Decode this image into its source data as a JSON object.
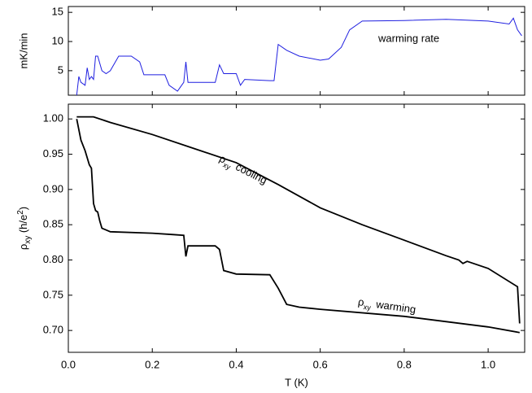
{
  "chart_data": [
    {
      "type": "line",
      "ylabel": "mK/min",
      "xlim": [
        0,
        1.087
      ],
      "xticks": [
        0,
        0.2,
        0.4,
        0.6,
        0.8,
        1.0
      ],
      "ylim": [
        0.8,
        16
      ],
      "yticks": [
        5,
        10,
        15
      ],
      "annotations": [
        {
          "text": "warming rate",
          "color": "#1f1fe0"
        }
      ],
      "series": [
        {
          "color": "#1f1fe0",
          "x": [
            0.02,
            0.025,
            0.03,
            0.04,
            0.045,
            0.05,
            0.055,
            0.06,
            0.065,
            0.07,
            0.08,
            0.09,
            0.1,
            0.12,
            0.15,
            0.17,
            0.18,
            0.23,
            0.24,
            0.26,
            0.27,
            0.275,
            0.28,
            0.285,
            0.3,
            0.35,
            0.36,
            0.37,
            0.4,
            0.41,
            0.42,
            0.48,
            0.49,
            0.5,
            0.52,
            0.55,
            0.6,
            0.62,
            0.65,
            0.67,
            0.7,
            0.8,
            0.9,
            1.0,
            1.05,
            1.06,
            1.07,
            1.08
          ],
          "values": [
            0.8,
            4,
            3,
            2.5,
            5.5,
            3.5,
            4,
            3.5,
            7.5,
            7.5,
            5,
            4.5,
            5,
            7.5,
            7.5,
            6.5,
            4.3,
            4.3,
            2.5,
            1.5,
            2.5,
            3,
            6.5,
            3,
            3,
            3,
            6,
            4.5,
            4.5,
            2.5,
            3.5,
            3.3,
            3.3,
            9.5,
            8.5,
            7.5,
            6.8,
            7,
            9,
            12,
            13.5,
            13.6,
            13.8,
            13.5,
            13,
            14,
            12,
            11
          ]
        }
      ]
    },
    {
      "type": "line",
      "xlabel": "T (K)",
      "ylabel": {
        "symbol": "ρ",
        "sub": "xy",
        "unit": " (h/e",
        "sup": "2",
        "end": ")"
      },
      "xlim": [
        0,
        1.087
      ],
      "xticks": [
        {
          "value": 0,
          "label": "0.0"
        },
        0.2,
        0.4,
        0.6,
        0.8,
        {
          "value": 1.0,
          "label": "1.0"
        }
      ],
      "ylim": [
        0.669,
        1.021
      ],
      "yticks": [
        {
          "value": 0.7,
          "label": "0.70"
        },
        0.75,
        {
          "value": 0.8,
          "label": "0.80"
        },
        0.85,
        {
          "value": 0.9,
          "label": "0.90"
        },
        0.95,
        {
          "value": 1.0,
          "label": "1.00"
        }
      ],
      "annotations": [
        {
          "symbol": "ρ",
          "sub": "xy",
          "text": "cooling"
        },
        {
          "symbol": "ρ",
          "sub": "xy",
          "text": "warming"
        }
      ],
      "series": [
        {
          "color": "#000000",
          "x": [
            0.02,
            0.06,
            0.1,
            0.2,
            0.3,
            0.4,
            0.5,
            0.6,
            0.7,
            0.8,
            0.9,
            0.93,
            0.94,
            0.95,
            1.0,
            1.07,
            1.075
          ],
          "values": [
            1.003,
            1.003,
            0.995,
            0.978,
            0.958,
            0.938,
            0.907,
            0.874,
            0.85,
            0.828,
            0.806,
            0.8,
            0.795,
            0.798,
            0.788,
            0.762,
            0.71
          ]
        },
        {
          "color": "#000000",
          "x": [
            0.02,
            0.03,
            0.04,
            0.05,
            0.055,
            0.06,
            0.065,
            0.07,
            0.075,
            0.08,
            0.1,
            0.2,
            0.25,
            0.275,
            0.28,
            0.285,
            0.35,
            0.36,
            0.37,
            0.4,
            0.48,
            0.5,
            0.52,
            0.55,
            0.6,
            0.8,
            1.0,
            1.075
          ],
          "values": [
            1.0,
            0.97,
            0.955,
            0.935,
            0.93,
            0.88,
            0.87,
            0.868,
            0.855,
            0.845,
            0.84,
            0.838,
            0.836,
            0.835,
            0.805,
            0.82,
            0.82,
            0.815,
            0.785,
            0.78,
            0.779,
            0.76,
            0.737,
            0.733,
            0.73,
            0.72,
            0.705,
            0.697
          ]
        }
      ]
    }
  ]
}
